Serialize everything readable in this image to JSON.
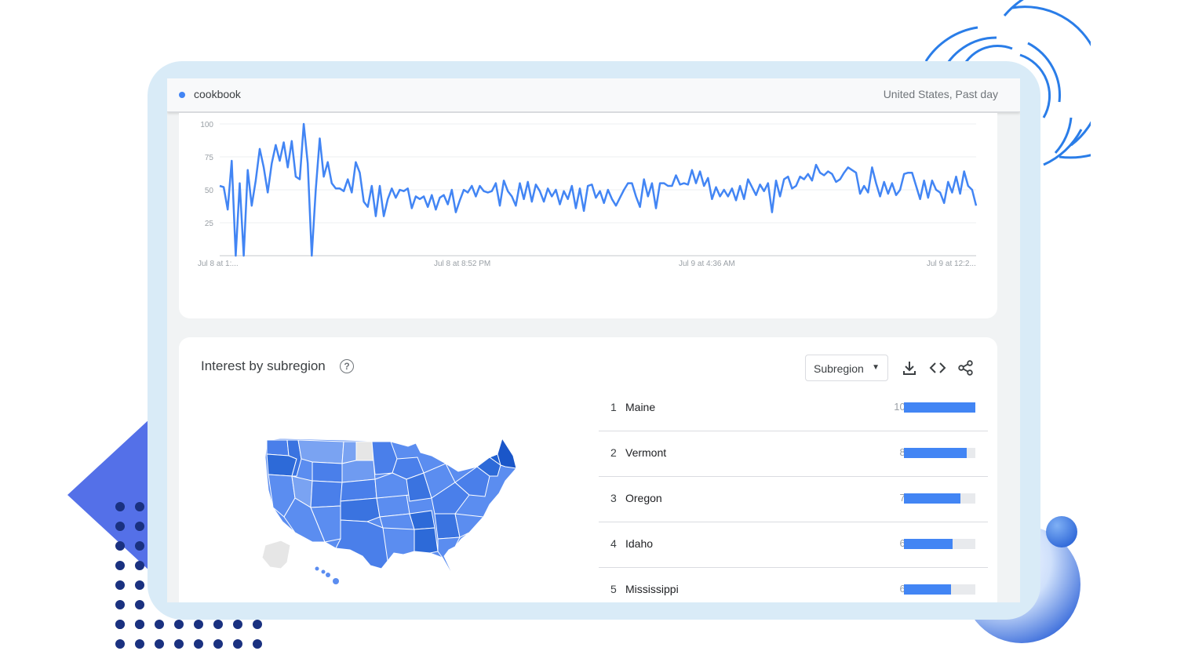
{
  "colors": {
    "accent": "#4285f4",
    "frame": "#d9ebf7",
    "deco_blue": "#2f6fe0",
    "deco_navy": "#1a3180"
  },
  "header": {
    "term": "cookbook",
    "scope": "United States, Past day"
  },
  "chart_data": {
    "type": "line",
    "x_ticks": [
      "Jul 8 at 1:...",
      "Jul 8 at 8:52 PM",
      "Jul 9 at 4:36 AM",
      "Jul 9 at 12:2..."
    ],
    "y_ticks": [
      "100",
      "75",
      "50",
      "25"
    ],
    "ylim": [
      0,
      100
    ],
    "grid": true,
    "series": [
      {
        "values": [
          53,
          52,
          35,
          72,
          0,
          55,
          0,
          65,
          38,
          57,
          81,
          67,
          48,
          70,
          84,
          72,
          86,
          67,
          87,
          60,
          58,
          100,
          70,
          0,
          50,
          89,
          60,
          71,
          55,
          51,
          51,
          49,
          58,
          48,
          71,
          63,
          41,
          37,
          53,
          30,
          53,
          30,
          43,
          51,
          44,
          50,
          49,
          51,
          36,
          45,
          43,
          45,
          37,
          46,
          35,
          44,
          46,
          39,
          50,
          33,
          42,
          50,
          48,
          53,
          45,
          53,
          49,
          48,
          49,
          55,
          38,
          57,
          49,
          45,
          38,
          55,
          43,
          56,
          41,
          54,
          49,
          41,
          51,
          45,
          50,
          39,
          49,
          43,
          53,
          36,
          51,
          34,
          53,
          54,
          44,
          49,
          40,
          50,
          43,
          38,
          44,
          50,
          55,
          55,
          45,
          37,
          58,
          45,
          55,
          36,
          55,
          55,
          53,
          53,
          61,
          54,
          55,
          54,
          65,
          55,
          64,
          53,
          59,
          43,
          52,
          45,
          50,
          45,
          51,
          42,
          53,
          43,
          58,
          52,
          46,
          54,
          49,
          55,
          33,
          57,
          45,
          58,
          60,
          51,
          53,
          60,
          58,
          62,
          57,
          69,
          63,
          61,
          64,
          62,
          56,
          58,
          63,
          67,
          65,
          63,
          47,
          53,
          48,
          67,
          55,
          45,
          56,
          47,
          55,
          46,
          50,
          62,
          63,
          63,
          53,
          43,
          57,
          44,
          57,
          50,
          48,
          40,
          56,
          48,
          60,
          47,
          64,
          53,
          50,
          38
        ]
      }
    ]
  },
  "subregion": {
    "title": "Interest by subregion",
    "select_label": "Subregion",
    "rankings": [
      {
        "rank": "1",
        "name": "Maine",
        "value": 100
      },
      {
        "rank": "2",
        "name": "Vermont",
        "value": 88
      },
      {
        "rank": "3",
        "name": "Oregon",
        "value": 79
      },
      {
        "rank": "4",
        "name": "Idaho",
        "value": 68
      },
      {
        "rank": "5",
        "name": "Mississippi",
        "value": 66
      }
    ]
  },
  "icons": [
    "help-icon",
    "download-icon",
    "embed-icon",
    "share-icon",
    "dropdown-caret-icon"
  ]
}
